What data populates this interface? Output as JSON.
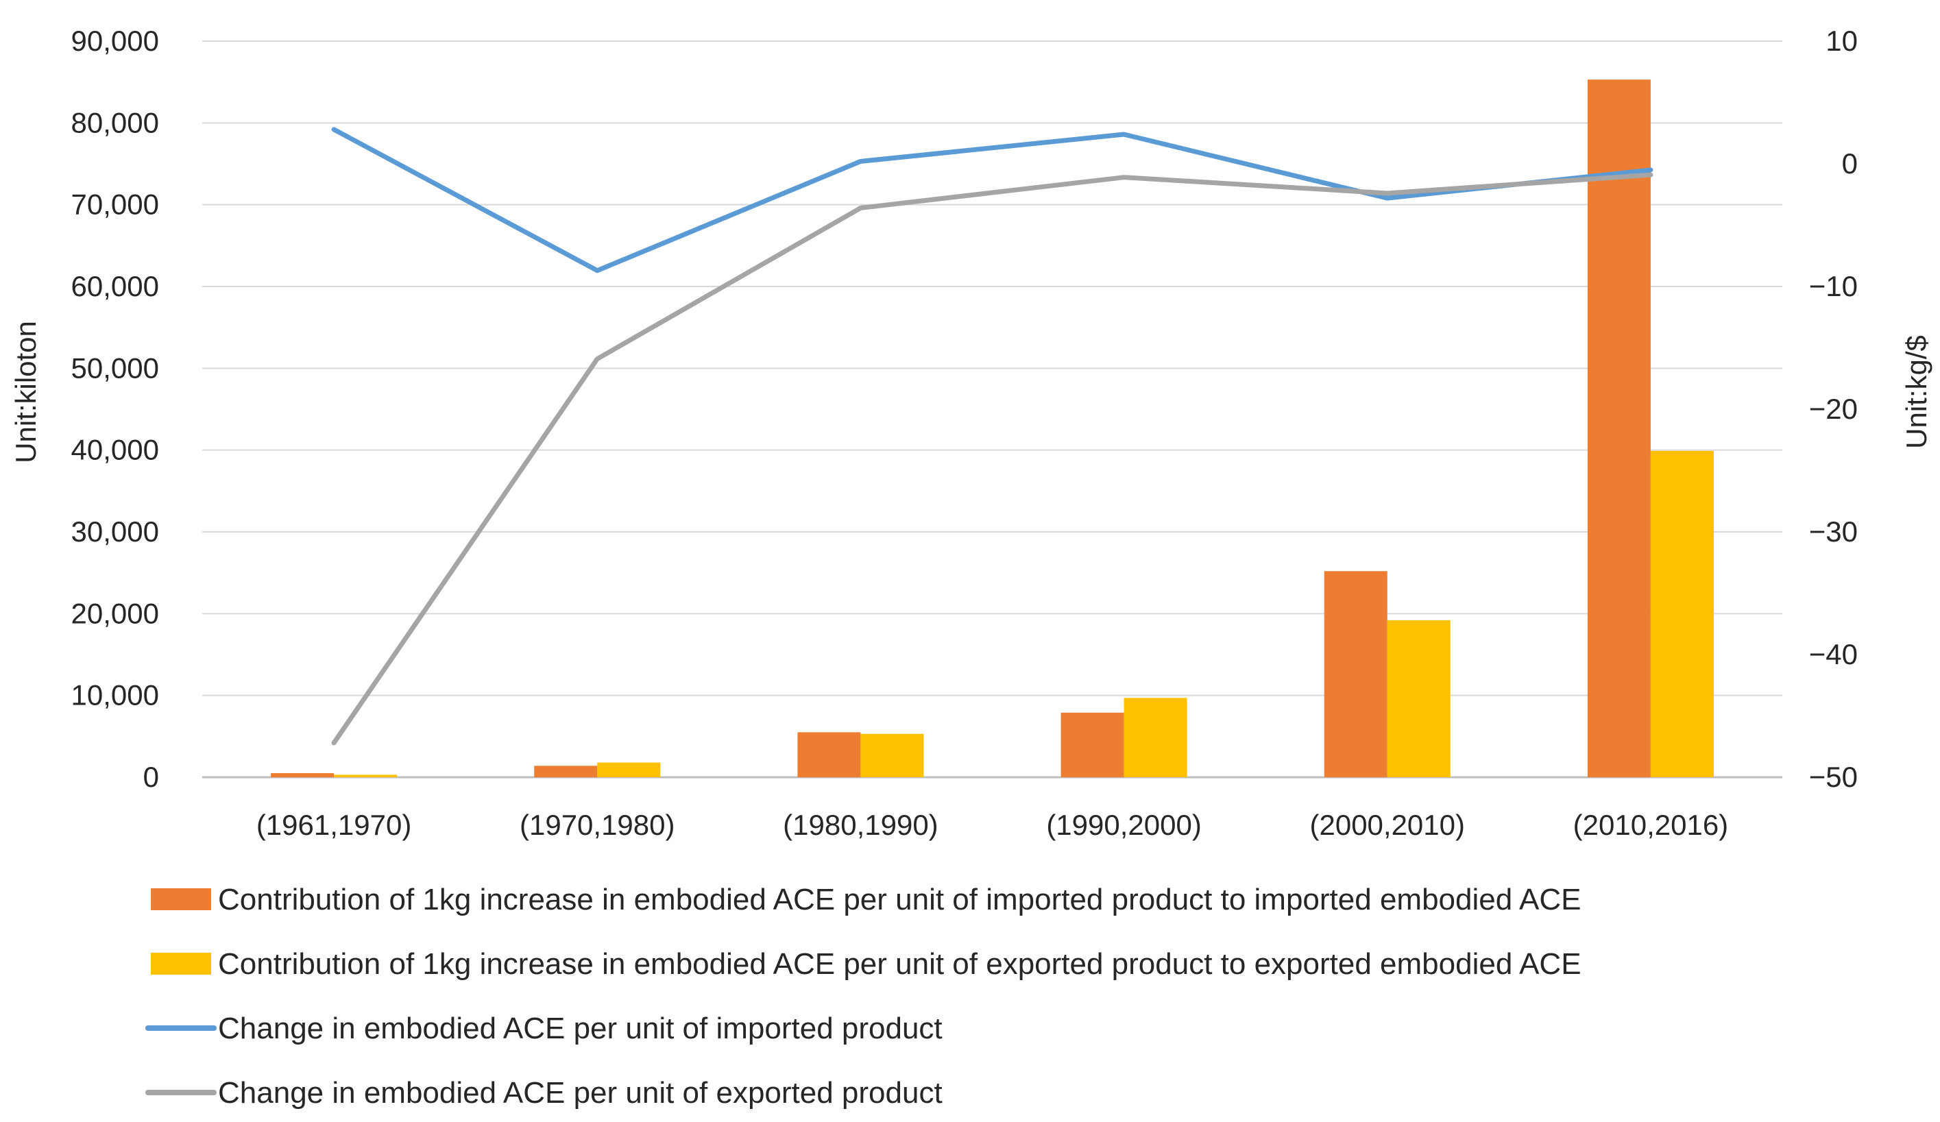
{
  "chart_data": {
    "type": "bar",
    "categories": [
      "(1961,1970)",
      "(1970,1980)",
      "(1980,1990)",
      "(1990,2000)",
      "(2000,2010)",
      "(2010,2016)"
    ],
    "ylabel": "Unit:kiloton",
    "y2label": "Unit:kg/$",
    "ylim": [
      0,
      90000
    ],
    "y2lim": [
      -50,
      10
    ],
    "yticks": [
      "0",
      "10,000",
      "20,000",
      "30,000",
      "40,000",
      "50,000",
      "60,000",
      "70,000",
      "80,000",
      "90,000"
    ],
    "y2ticks": [
      "−50",
      "−40",
      "−30",
      "−20",
      "−10",
      "0",
      "10"
    ],
    "grid": true,
    "legend_position": "bottom",
    "series": [
      {
        "name": "Contribution of 1kg increase in embodied ACE per unit of imported product to imported embodied ACE",
        "kind": "bar",
        "axis": "left",
        "color": "#ED7D31",
        "values": [
          500,
          1400,
          5500,
          7900,
          25200,
          85300
        ]
      },
      {
        "name": "Contribution of 1kg increase in embodied ACE per unit of exported product to exported embodied ACE",
        "kind": "bar",
        "axis": "left",
        "color": "#FFC000",
        "values": [
          300,
          1800,
          5300,
          9700,
          19200,
          39900
        ]
      },
      {
        "name": "Change in embodied ACE per unit of imported product",
        "kind": "line",
        "axis": "right",
        "color": "#5B9BD5",
        "values": [
          2.8,
          -8.7,
          0.2,
          2.4,
          -2.8,
          -0.5
        ]
      },
      {
        "name": "Change in embodied ACE per unit of exported product",
        "kind": "line",
        "axis": "right",
        "color": "#A5A5A5",
        "values": [
          -47.2,
          -15.9,
          -3.6,
          -1.1,
          -2.4,
          -0.9
        ]
      }
    ]
  }
}
